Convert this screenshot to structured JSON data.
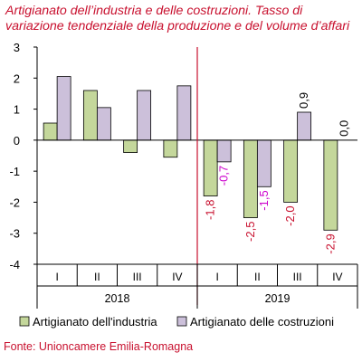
{
  "chart_data": {
    "type": "bar",
    "title": [
      "Artigianato dell’industria e delle costruzioni. Tasso di",
      "variazione tendenziale della produzione e del volume d’affari"
    ],
    "categories": [
      "I",
      "II",
      "III",
      "IV",
      "I",
      "II",
      "III",
      "IV"
    ],
    "groups": [
      {
        "label": "2018",
        "count": 4
      },
      {
        "label": "2019",
        "count": 4
      }
    ],
    "series": [
      {
        "name": "Artigianato dell'industria",
        "color": "#c4d79b",
        "label_color": "#c8102e",
        "values": [
          0.55,
          1.6,
          -0.4,
          -0.55,
          -1.8,
          -2.5,
          -2.0,
          -2.9
        ],
        "data_labels": [
          null,
          null,
          null,
          null,
          "-1,8",
          "-2,5",
          "-2,0",
          "-2,9"
        ]
      },
      {
        "name": "Artigianato delle costruzioni",
        "color": "#ccc0da",
        "label_color": "#cc00cc",
        "values": [
          2.05,
          1.05,
          1.6,
          1.75,
          -0.7,
          -1.5,
          0.9,
          0.0
        ],
        "data_labels": [
          null,
          null,
          null,
          null,
          "-0,7",
          "-1,5",
          "0,9",
          "0,0"
        ],
        "data_label_colors": [
          null,
          null,
          null,
          null,
          "#cc00cc",
          "#cc00cc",
          "#000000",
          "#000000"
        ]
      }
    ],
    "ylim": [
      -4,
      3
    ],
    "yticks": [
      3,
      2,
      1,
      0,
      -1,
      -2,
      -3,
      -4
    ],
    "ytick_labels": [
      "3",
      "2",
      "1",
      "0",
      "-1",
      "-2",
      "-3",
      "-4"
    ],
    "divider_after_category": 4,
    "divider_color": "#c8102e",
    "legend_position": "bottom",
    "grid": false
  },
  "source": "Fonte: Unioncamere Emilia-Romagna"
}
